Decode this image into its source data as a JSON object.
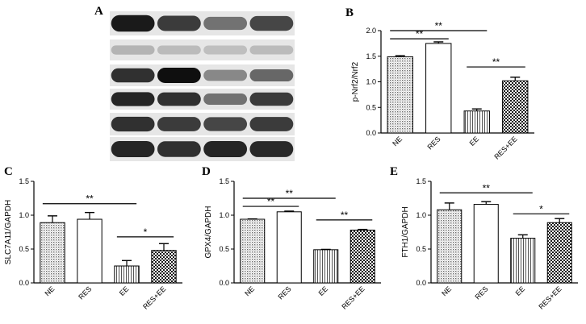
{
  "figure": {
    "panel_label_a": "A",
    "western_blot": {
      "lanes": 4,
      "bands": [
        {
          "intensities": [
            0.95,
            0.8,
            0.55,
            0.75
          ]
        },
        {
          "intensities": [
            0.25,
            0.22,
            0.2,
            0.22
          ]
        },
        {
          "intensities": [
            0.85,
            1.0,
            0.45,
            0.6
          ]
        },
        {
          "intensities": [
            0.9,
            0.85,
            0.55,
            0.8
          ]
        },
        {
          "intensities": [
            0.85,
            0.8,
            0.75,
            0.8
          ]
        },
        {
          "intensities": [
            0.9,
            0.85,
            0.9,
            0.88
          ]
        }
      ]
    }
  },
  "chart_data": [
    {
      "panel": "B",
      "type": "bar",
      "categories": [
        "NE",
        "RES",
        "EE",
        "RES+EE"
      ],
      "values": [
        1.49,
        1.75,
        0.43,
        1.02
      ],
      "errors": [
        0.02,
        0.03,
        0.04,
        0.07
      ],
      "patterns": [
        "dots",
        "white",
        "vlines",
        "checker"
      ],
      "ylabel": "p-Nrf2/Nrf2",
      "ylim": [
        0,
        2.0
      ],
      "yticks": [
        "0.0",
        "0.5",
        "1.0",
        "1.5",
        "2.0"
      ],
      "tickvals": [
        0,
        0.5,
        1.0,
        1.5,
        2.0
      ],
      "significance": [
        {
          "from": 0,
          "to": 1,
          "level": 1.84,
          "label": "**"
        },
        {
          "from": 0,
          "to": 2,
          "level": 2.0,
          "label": "**"
        },
        {
          "from": 2,
          "to": 3,
          "level": 1.29,
          "label": "**"
        }
      ]
    },
    {
      "panel": "C",
      "type": "bar",
      "categories": [
        "NE",
        "RES",
        "EE",
        "RES+EE"
      ],
      "values": [
        0.89,
        0.94,
        0.25,
        0.48
      ],
      "errors": [
        0.1,
        0.1,
        0.08,
        0.1
      ],
      "patterns": [
        "dots",
        "white",
        "vlines",
        "checker"
      ],
      "ylabel": "SLC7A11/GAPDH",
      "ylim": [
        0,
        1.5
      ],
      "yticks": [
        "0.0",
        "0.5",
        "1.0",
        "1.5"
      ],
      "tickvals": [
        0,
        0.5,
        1.0,
        1.5
      ],
      "significance": [
        {
          "from": 0,
          "to": 2,
          "level": 1.17,
          "label": "**"
        },
        {
          "from": 2,
          "to": 3,
          "level": 0.68,
          "label": "*"
        }
      ]
    },
    {
      "panel": "D",
      "type": "bar",
      "categories": [
        "NE",
        "RES",
        "EE",
        "RES+EE"
      ],
      "values": [
        0.94,
        1.05,
        0.49,
        0.78
      ],
      "errors": [
        0.005,
        0.01,
        0.005,
        0.01
      ],
      "patterns": [
        "dots",
        "white",
        "vlines",
        "checker"
      ],
      "ylabel": "GPX4/GAPDH",
      "ylim": [
        0,
        1.5
      ],
      "yticks": [
        "0.0",
        "0.5",
        "1.0",
        "1.5"
      ],
      "tickvals": [
        0,
        0.5,
        1.0,
        1.5
      ],
      "significance": [
        {
          "from": 0,
          "to": 1,
          "level": 1.13,
          "label": "**"
        },
        {
          "from": 0,
          "to": 2,
          "level": 1.25,
          "label": "**"
        },
        {
          "from": 2,
          "to": 3,
          "level": 0.93,
          "label": "**"
        }
      ]
    },
    {
      "panel": "E",
      "type": "bar",
      "categories": [
        "NE",
        "RES",
        "EE",
        "RES+EE"
      ],
      "values": [
        1.08,
        1.16,
        0.66,
        0.89
      ],
      "errors": [
        0.1,
        0.04,
        0.05,
        0.06
      ],
      "patterns": [
        "dots",
        "white",
        "vlines",
        "checker"
      ],
      "ylabel": "FTH1/GAPDH",
      "ylim": [
        0,
        1.5
      ],
      "yticks": [
        "0.0",
        "0.5",
        "1.0",
        "1.5"
      ],
      "tickvals": [
        0,
        0.5,
        1.0,
        1.5
      ],
      "significance": [
        {
          "from": 0,
          "to": 2,
          "level": 1.33,
          "label": "**"
        },
        {
          "from": 2,
          "to": 3,
          "level": 1.02,
          "label": "*"
        }
      ]
    }
  ]
}
